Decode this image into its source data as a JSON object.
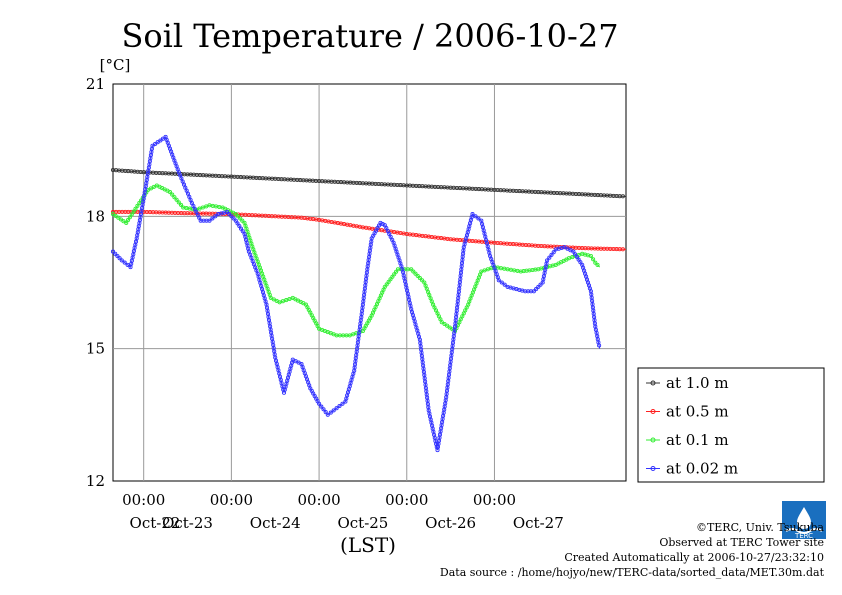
{
  "chart_data": {
    "type": "line",
    "title": "Soil Temperature / 2006-10-27",
    "y_unit": "[°C]",
    "xlabel": "(LST)",
    "ylim": [
      12,
      21
    ],
    "yticks": [
      12,
      15,
      18,
      21
    ],
    "xlim": [
      -0.35,
      5.5
    ],
    "x_time_labels": [
      "00:00",
      "00:00",
      "00:00",
      "00:00",
      "00:00"
    ],
    "x_time_positions": [
      0,
      1,
      2,
      3,
      4
    ],
    "x_date_labels": [
      "Oct-22",
      "Oct-23",
      "Oct-24",
      "Oct-25",
      "Oct-26",
      "Oct-27"
    ],
    "x_date_positions": [
      -0.5,
      0.5,
      1.5,
      2.5,
      3.5,
      4.5
    ],
    "grid": true,
    "legend_placement": "right",
    "series": [
      {
        "name": "at 1.0 m",
        "color": "#333333",
        "x": [
          -0.35,
          0.0,
          0.5,
          1.0,
          1.5,
          2.0,
          2.5,
          3.0,
          3.5,
          4.0,
          4.5,
          5.0,
          5.5
        ],
        "y": [
          19.05,
          19.0,
          18.95,
          18.9,
          18.85,
          18.8,
          18.75,
          18.7,
          18.65,
          18.6,
          18.55,
          18.5,
          18.45
        ]
      },
      {
        "name": "at 0.5 m",
        "color": "#ff2020",
        "x": [
          -0.35,
          0.0,
          0.5,
          1.0,
          1.2,
          1.5,
          1.8,
          2.0,
          2.5,
          3.0,
          3.5,
          4.0,
          4.5,
          5.0,
          5.5
        ],
        "y": [
          18.1,
          18.1,
          18.07,
          18.05,
          18.03,
          18.0,
          17.97,
          17.92,
          17.75,
          17.6,
          17.48,
          17.4,
          17.33,
          17.28,
          17.25
        ]
      },
      {
        "name": "at 0.1 m",
        "color": "#33ee33",
        "x": [
          -0.35,
          -0.2,
          -0.05,
          0.05,
          0.15,
          0.3,
          0.45,
          0.6,
          0.75,
          0.9,
          1.05,
          1.15,
          1.25,
          1.35,
          1.45,
          1.55,
          1.7,
          1.85,
          2.0,
          2.2,
          2.35,
          2.5,
          2.6,
          2.75,
          2.9,
          3.05,
          3.2,
          3.3,
          3.4,
          3.55,
          3.7,
          3.85,
          4.0,
          4.15,
          4.3,
          4.5,
          4.7,
          4.85,
          5.0,
          5.1,
          5.15,
          5.2
        ],
        "y": [
          18.05,
          17.85,
          18.3,
          18.6,
          18.7,
          18.55,
          18.2,
          18.15,
          18.25,
          18.2,
          18.05,
          17.85,
          17.25,
          16.7,
          16.15,
          16.05,
          16.15,
          16.0,
          15.45,
          15.3,
          15.3,
          15.4,
          15.75,
          16.4,
          16.8,
          16.8,
          16.5,
          16.0,
          15.6,
          15.4,
          16.0,
          16.75,
          16.85,
          16.8,
          16.75,
          16.8,
          16.9,
          17.05,
          17.15,
          17.1,
          16.95,
          16.85
        ]
      },
      {
        "name": "at 0.02 m",
        "color": "#3333ff",
        "x": [
          -0.35,
          -0.25,
          -0.15,
          -0.08,
          0.0,
          0.1,
          0.25,
          0.4,
          0.55,
          0.65,
          0.75,
          0.85,
          0.95,
          1.05,
          1.15,
          1.2,
          1.3,
          1.4,
          1.5,
          1.6,
          1.7,
          1.8,
          1.9,
          2.0,
          2.1,
          2.2,
          2.3,
          2.4,
          2.5,
          2.55,
          2.6,
          2.7,
          2.75,
          2.85,
          2.95,
          3.05,
          3.15,
          3.2,
          3.25,
          3.35,
          3.45,
          3.55,
          3.65,
          3.75,
          3.85,
          3.95,
          4.05,
          4.15,
          4.25,
          4.35,
          4.45,
          4.55,
          4.6,
          4.7,
          4.8,
          4.9,
          5.0,
          5.1,
          5.15,
          5.2
        ],
        "y": [
          17.2,
          17.0,
          16.85,
          17.5,
          18.4,
          19.6,
          19.8,
          19.0,
          18.3,
          17.9,
          17.9,
          18.05,
          18.1,
          17.9,
          17.6,
          17.2,
          16.7,
          16.0,
          14.8,
          14.0,
          14.75,
          14.65,
          14.1,
          13.75,
          13.5,
          13.65,
          13.8,
          14.5,
          16.0,
          16.8,
          17.5,
          17.85,
          17.8,
          17.4,
          16.8,
          15.9,
          15.2,
          14.4,
          13.6,
          12.7,
          13.9,
          15.5,
          17.3,
          18.05,
          17.9,
          17.1,
          16.55,
          16.4,
          16.35,
          16.3,
          16.3,
          16.5,
          17.0,
          17.25,
          17.3,
          17.2,
          16.9,
          16.3,
          15.5,
          15.0
        ]
      }
    ]
  },
  "footer": {
    "copyright": "©TERC, Univ. Tsukuba",
    "observed": "Observed at TERC Tower site",
    "created": "Created Automatically at 2006-10-27/23:32:10",
    "source": "Data source : /home/hojyo/new/TERC-data/sorted_data/MET.30m.dat"
  },
  "logo": {
    "text": "TERC",
    "color": "#1a6fbf"
  }
}
